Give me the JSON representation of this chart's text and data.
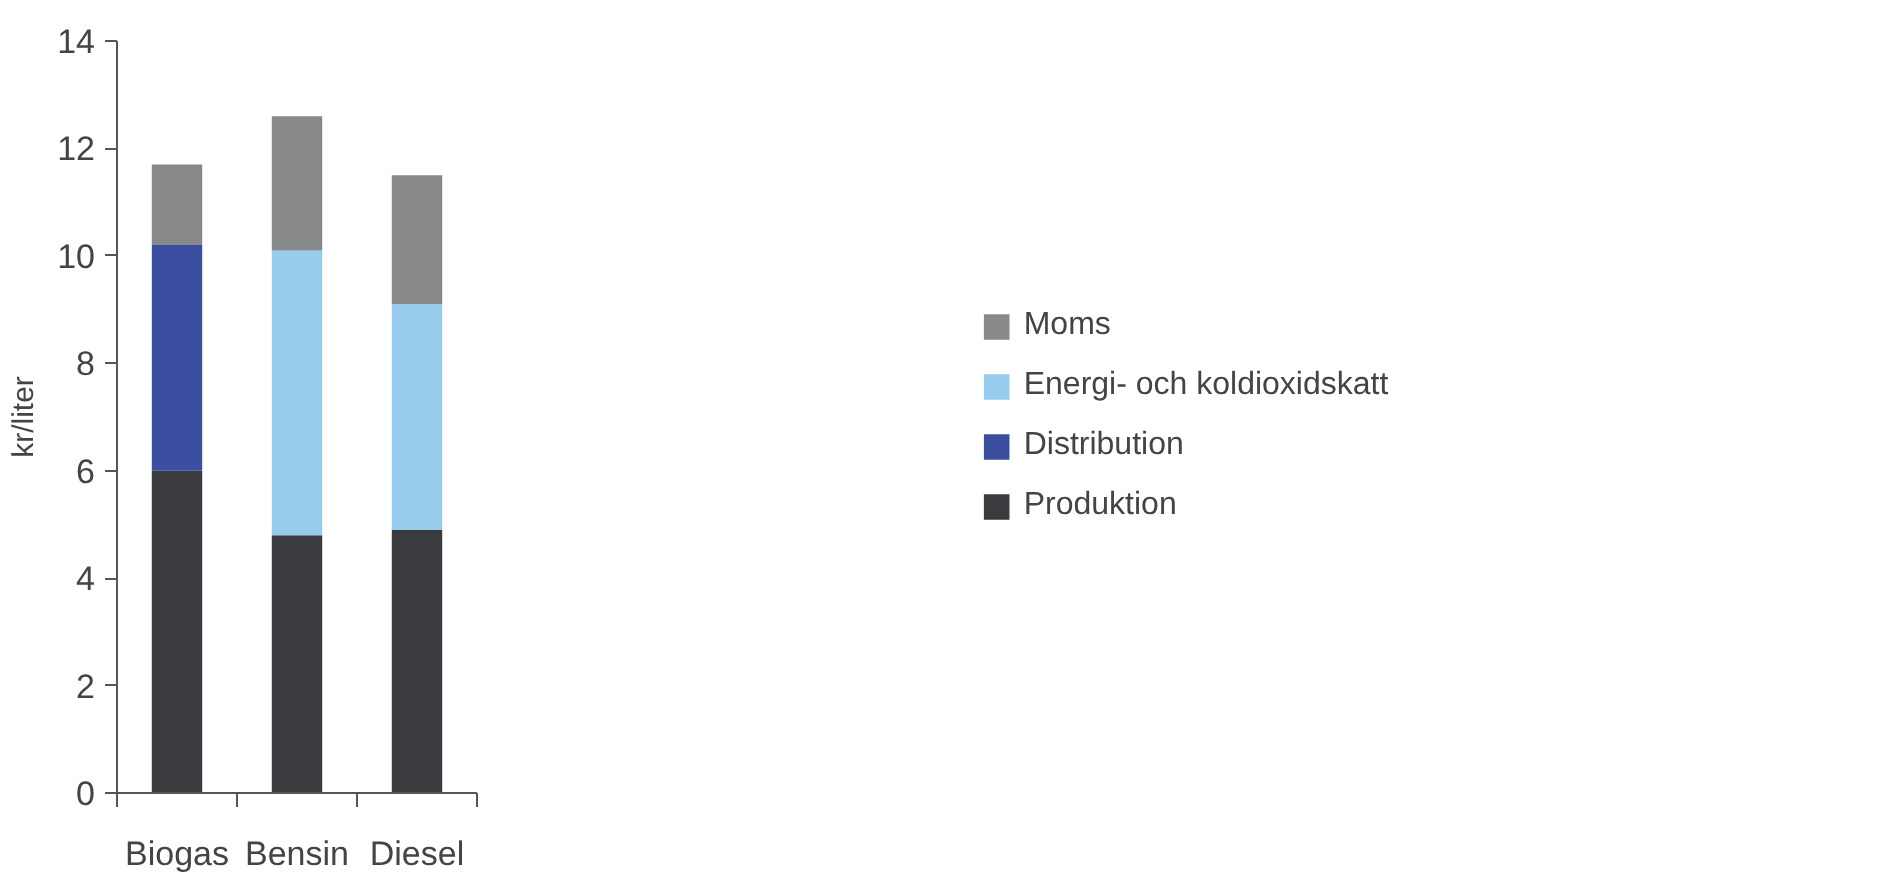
{
  "chart_data": {
    "type": "bar",
    "stacked": true,
    "ylabel": "kr/liter",
    "categories": [
      "Biogas",
      "Bensin",
      "Diesel"
    ],
    "series": [
      {
        "name": "Produktion",
        "color": "#3a3b3f",
        "values": [
          6.0,
          4.8,
          4.9
        ]
      },
      {
        "name": "Distribution",
        "color": "#3c4ea0",
        "values": [
          4.2,
          null,
          null
        ]
      },
      {
        "name": "Energi- och koldioxidskatt",
        "color": "#97cbeb",
        "values": [
          null,
          5.3,
          4.2
        ]
      },
      {
        "name": "Moms",
        "color": "#87888a",
        "values": [
          1.5,
          2.5,
          2.4
        ]
      }
    ],
    "ylim": [
      0,
      14
    ],
    "yticks": [
      0,
      2,
      4,
      6,
      8,
      10,
      12,
      14
    ],
    "grid": false,
    "legend": "right"
  }
}
